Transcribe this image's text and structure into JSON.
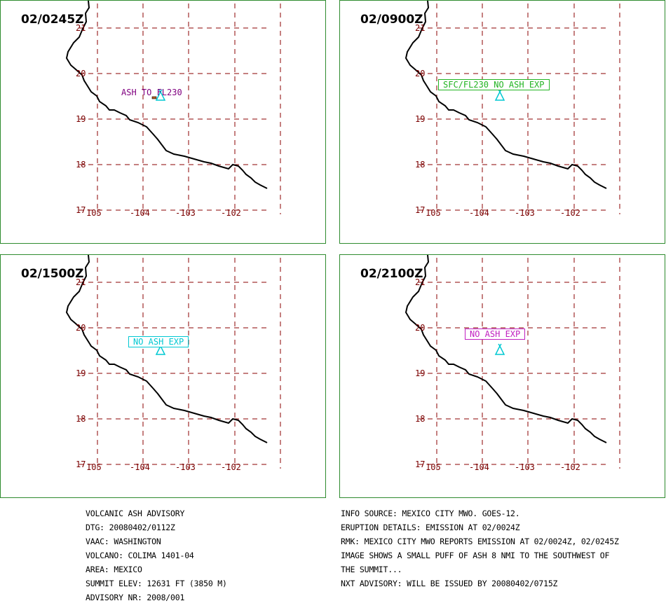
{
  "panels": [
    {
      "time": "02/0245Z",
      "annotation": {
        "text": "ASH TO FL230",
        "color": "#800080",
        "boxed": false
      }
    },
    {
      "time": "02/0900Z",
      "annotation": {
        "text": "SFC/FL230 NO ASH EXP",
        "color": "#22b422",
        "boxed": true
      }
    },
    {
      "time": "02/1500Z",
      "annotation": {
        "text": "NO ASH EXP",
        "color": "#00c8d2",
        "boxed": true
      }
    },
    {
      "time": "02/2100Z",
      "annotation": {
        "text": "NO ASH EXP",
        "color": "#c020c0",
        "boxed": true
      }
    }
  ],
  "map": {
    "lat_labels": [
      "21",
      "20",
      "19",
      "18",
      "17"
    ],
    "lon_labels": [
      "105",
      "-104",
      "-103",
      "-102"
    ],
    "volcano_symbol": "triangle-volcano-icon",
    "volcano_color": "#00c8d2",
    "grid_color": "#8b0000",
    "coast_color": "#000000"
  },
  "advisory": {
    "left_lines": [
      "VOLCANIC ASH ADVISORY",
      "DTG: 20080402/0112Z",
      "VAAC: WASHINGTON",
      "VOLCANO: COLIMA 1401-04",
      "AREA: MEXICO",
      "SUMMIT ELEV: 12631 FT (3850 M)",
      "ADVISORY NR: 2008/001"
    ],
    "right_lines": [
      "INFO SOURCE: MEXICO CITY MWO. GOES-12.",
      "ERUPTION DETAILS: EMISSION AT 02/0024Z",
      "RMK: MEXICO CITY MWO REPORTS EMISSION AT 02/0024Z, 02/0245Z",
      "IMAGE SHOWS A SMALL PUFF OF ASH 8 NMI TO THE SOUTHWEST OF",
      "THE SUMMIT...",
      "NXT ADVISORY: WILL BE ISSUED BY 20080402/0715Z"
    ]
  }
}
